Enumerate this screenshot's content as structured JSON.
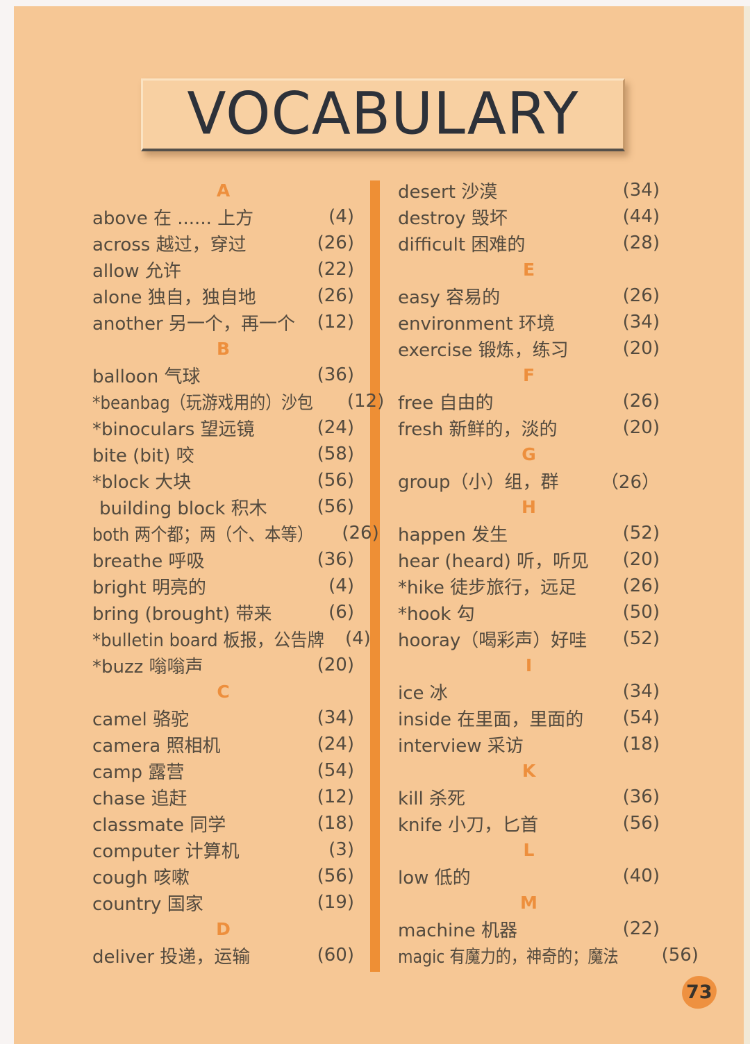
{
  "title": "VOCABULARY",
  "page_number": "73",
  "colors": {
    "background": "#f6c795",
    "accent_orange": "#ee8f35",
    "entry_text": "#534a3e",
    "title_text": "#2d3139",
    "title_box_bg": "#f8d0a2",
    "page_badge": "#ee9140"
  },
  "columns": {
    "left": {
      "rows": [
        {
          "type": "header",
          "label": "A"
        },
        {
          "type": "entry",
          "text": "above 在 ...... 上方",
          "page": "(4)"
        },
        {
          "type": "entry",
          "text": "across 越过，穿过",
          "page": "(26)"
        },
        {
          "type": "entry",
          "text": "allow 允许",
          "page": "(22)"
        },
        {
          "type": "entry",
          "text": "alone 独自，独自地",
          "page": "(26)"
        },
        {
          "type": "entry",
          "text": "another 另一个，再一个",
          "page": "(12)"
        },
        {
          "type": "header",
          "label": "B"
        },
        {
          "type": "entry",
          "text": "balloon 气球",
          "page": "(36)"
        },
        {
          "type": "entry",
          "text": "*beanbag（玩游戏用的）沙包",
          "page": "(12)"
        },
        {
          "type": "entry",
          "text": "*binoculars 望远镜",
          "page": "(24)"
        },
        {
          "type": "entry",
          "text": "bite (bit) 咬",
          "page": "(58)"
        },
        {
          "type": "entry",
          "text": "*block 大块",
          "page": "(56)"
        },
        {
          "type": "entry",
          "text": "building block 积木",
          "page": "(56)",
          "indent": true
        },
        {
          "type": "entry",
          "text": "both 两个都；两（个、本等）",
          "page": "(26)"
        },
        {
          "type": "entry",
          "text": "breathe 呼吸",
          "page": "(36)"
        },
        {
          "type": "entry",
          "text": "bright 明亮的",
          "page": "(4)"
        },
        {
          "type": "entry",
          "text": "bring (brought)  带来",
          "page": "(6)"
        },
        {
          "type": "entry",
          "text": "*bulletin board 板报，公告牌",
          "page": "(4)"
        },
        {
          "type": "entry",
          "text": "*buzz 嗡嗡声",
          "page": "(20)"
        },
        {
          "type": "header",
          "label": "C"
        },
        {
          "type": "entry",
          "text": "camel 骆驼",
          "page": "(34)"
        },
        {
          "type": "entry",
          "text": "camera 照相机",
          "page": "(24)"
        },
        {
          "type": "entry",
          "text": "camp 露营",
          "page": "(54)"
        },
        {
          "type": "entry",
          "text": "chase 追赶",
          "page": "(12)"
        },
        {
          "type": "entry",
          "text": "classmate 同学",
          "page": "(18)"
        },
        {
          "type": "entry",
          "text": "computer 计算机",
          "page": "(3)"
        },
        {
          "type": "entry",
          "text": "cough 咳嗽",
          "page": "(56)"
        },
        {
          "type": "entry",
          "text": "country 国家",
          "page": "(19)"
        },
        {
          "type": "header",
          "label": "D"
        },
        {
          "type": "entry",
          "text": "deliver 投递，运输",
          "page": "(60)"
        }
      ]
    },
    "right": {
      "rows": [
        {
          "type": "entry",
          "text": "desert 沙漠",
          "page": "(34)"
        },
        {
          "type": "entry",
          "text": "destroy 毁坏",
          "page": "(44)"
        },
        {
          "type": "entry",
          "text": "difficult 困难的",
          "page": "(28)"
        },
        {
          "type": "header",
          "label": "E"
        },
        {
          "type": "entry",
          "text": "easy 容易的",
          "page": "(26)"
        },
        {
          "type": "entry",
          "text": "environment 环境",
          "page": "(34)"
        },
        {
          "type": "entry",
          "text": "exercise 锻炼，练习",
          "page": "(20)"
        },
        {
          "type": "header",
          "label": "F"
        },
        {
          "type": "entry",
          "text": "free 自由的",
          "page": "(26)"
        },
        {
          "type": "entry",
          "text": "fresh 新鲜的，淡的",
          "page": "(20)"
        },
        {
          "type": "header",
          "label": "G"
        },
        {
          "type": "entry",
          "text": "group（小）组，群",
          "page": "（26）"
        },
        {
          "type": "header",
          "label": "H"
        },
        {
          "type": "entry",
          "text": "happen 发生",
          "page": "(52)"
        },
        {
          "type": "entry",
          "text": "hear (heard) 听，听见",
          "page": "(20)"
        },
        {
          "type": "entry",
          "text": "*hike 徒步旅行，远足",
          "page": "(26)"
        },
        {
          "type": "entry",
          "text": "*hook 勾",
          "page": "(50)"
        },
        {
          "type": "entry",
          "text": "hooray（喝彩声）好哇",
          "page": "(52)"
        },
        {
          "type": "header",
          "label": "I"
        },
        {
          "type": "entry",
          "text": "ice 冰",
          "page": "(34)"
        },
        {
          "type": "entry",
          "text": "inside 在里面，里面的",
          "page": "(54)"
        },
        {
          "type": "entry",
          "text": "interview 采访",
          "page": "(18)"
        },
        {
          "type": "header",
          "label": "K"
        },
        {
          "type": "entry",
          "text": "kill 杀死",
          "page": "(36)"
        },
        {
          "type": "entry",
          "text": "knife 小刀，匕首",
          "page": "(56)"
        },
        {
          "type": "header",
          "label": "L"
        },
        {
          "type": "entry",
          "text": "low 低的",
          "page": "(40)"
        },
        {
          "type": "header",
          "label": "M"
        },
        {
          "type": "entry",
          "text": "machine 机器",
          "page": "(22)"
        },
        {
          "type": "entry",
          "text": "magic 有魔力的，神奇的；魔法",
          "page": "(56)"
        }
      ]
    }
  }
}
